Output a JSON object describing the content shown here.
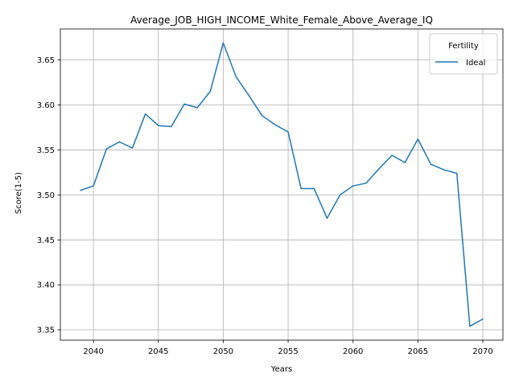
{
  "chart_data": {
    "type": "line",
    "title": "Average_JOB_HIGH_INCOME_White_Female_Above_Average_IQ",
    "xlabel": "Years",
    "ylabel": "Score(1-5)",
    "xlim": [
      2037.45,
      2071.55
    ],
    "ylim": [
      3.3385,
      3.6845
    ],
    "xticks": [
      2040,
      2045,
      2050,
      2055,
      2060,
      2065,
      2070
    ],
    "yticks": [
      3.35,
      3.4,
      3.45,
      3.5,
      3.55,
      3.6,
      3.65
    ],
    "grid": true,
    "legend": {
      "title": "Fertility",
      "placement": "top-right"
    },
    "series": [
      {
        "name": "Ideal",
        "color": "#1f77b4",
        "x": [
          2039,
          2040,
          2041,
          2042,
          2043,
          2044,
          2045,
          2046,
          2047,
          2048,
          2049,
          2050,
          2051,
          2052,
          2053,
          2054,
          2055,
          2056,
          2057,
          2058,
          2059,
          2060,
          2061,
          2062,
          2063,
          2064,
          2065,
          2066,
          2067,
          2068,
          2069,
          2070
        ],
        "values": [
          3.505,
          3.51,
          3.551,
          3.559,
          3.552,
          3.59,
          3.577,
          3.576,
          3.601,
          3.597,
          3.615,
          3.669,
          3.631,
          3.61,
          3.588,
          3.578,
          3.57,
          3.507,
          3.507,
          3.474,
          3.5,
          3.51,
          3.513,
          3.529,
          3.544,
          3.536,
          3.562,
          3.534,
          3.528,
          3.524,
          3.354,
          3.362
        ]
      }
    ]
  }
}
